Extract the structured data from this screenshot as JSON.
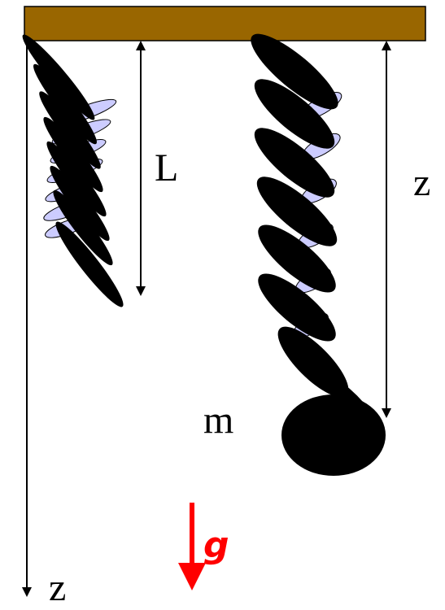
{
  "labels": {
    "length": "L",
    "extension": "z",
    "mass": "m",
    "gravity": "g",
    "axis": "z"
  }
}
